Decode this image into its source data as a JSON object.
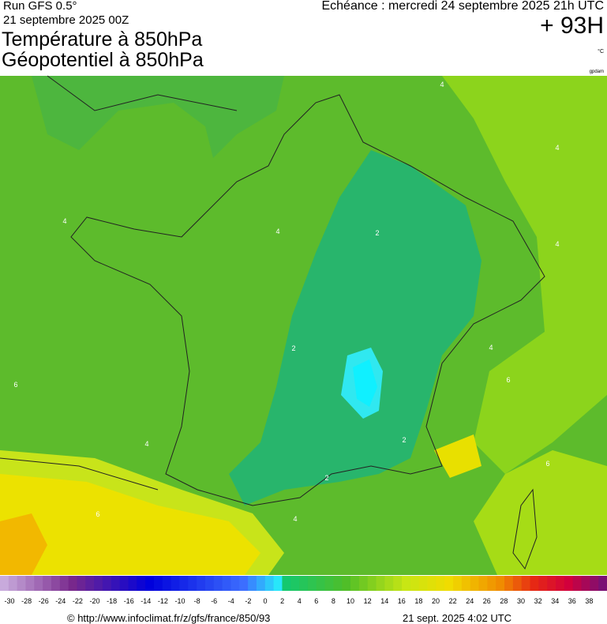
{
  "header": {
    "run": "Run GFS 0.5°",
    "run_date": "21 septembre 2025 00Z",
    "valid": "Echéance : mercredi 24 septembre 2025 21h UTC",
    "lead": "+ 93H",
    "title1": "Température à 850hPa",
    "title2": "Géopotentiel à 850hPa",
    "unit": "°C",
    "unit2": "gpdam"
  },
  "contour_labels": [
    "4",
    "4",
    "4",
    "4",
    "4",
    "2",
    "2",
    "2",
    "2",
    "4",
    "6",
    "6",
    "4",
    "6",
    "4",
    "6"
  ],
  "scale": {
    "labels": [
      -30,
      -28,
      -26,
      -24,
      -22,
      -20,
      -18,
      -16,
      -14,
      -12,
      -10,
      -8,
      -6,
      -4,
      -2,
      0,
      2,
      4,
      6,
      8,
      10,
      12,
      14,
      16,
      18,
      20,
      22,
      24,
      26,
      28,
      30,
      32,
      34,
      36,
      38
    ]
  },
  "footer": {
    "source": "© http://www.infoclimat.fr/z/gfs/france/850/93",
    "generated": "21 sept. 2025  4:02 UTC"
  }
}
